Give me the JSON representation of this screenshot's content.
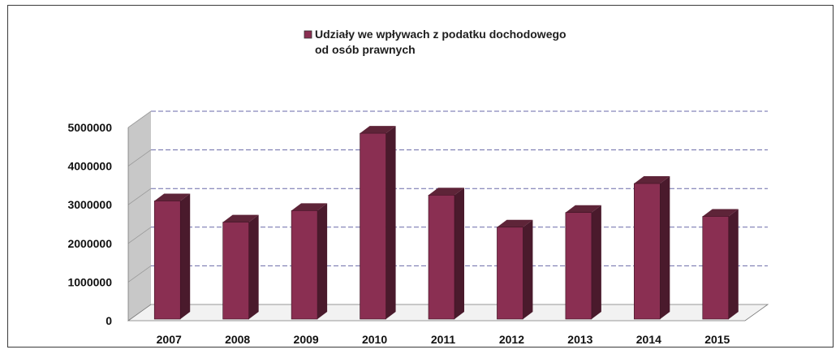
{
  "chart_data": {
    "type": "bar",
    "categories": [
      "2007",
      "2008",
      "2009",
      "2010",
      "2011",
      "2012",
      "2013",
      "2014",
      "2015"
    ],
    "series": [
      {
        "name": "Udziały we wpływach z podatku dochodowego od osób prawnych",
        "values": [
          3100000,
          2550000,
          2850000,
          4850000,
          3250000,
          2420000,
          2800000,
          3550000,
          2700000
        ],
        "color": "#8a2f52"
      }
    ],
    "legend": {
      "lines": [
        "Udziały we wpływach z podatku dochodowego",
        "od osób prawnych"
      ],
      "position": "top-center"
    },
    "y_ticks": [
      "0",
      "1000000",
      "2000000",
      "3000000",
      "4000000",
      "5000000"
    ],
    "ylim": [
      0,
      5000000
    ],
    "grid": true,
    "style": "3d-column",
    "colors": {
      "bar_front": "#8a2f52",
      "bar_side": "#4a1a2c",
      "bar_top": "#5e2438",
      "back_wall": "#ffffff",
      "side_wall": "#c8c8c8",
      "gridline": "#6a6aa8"
    }
  }
}
